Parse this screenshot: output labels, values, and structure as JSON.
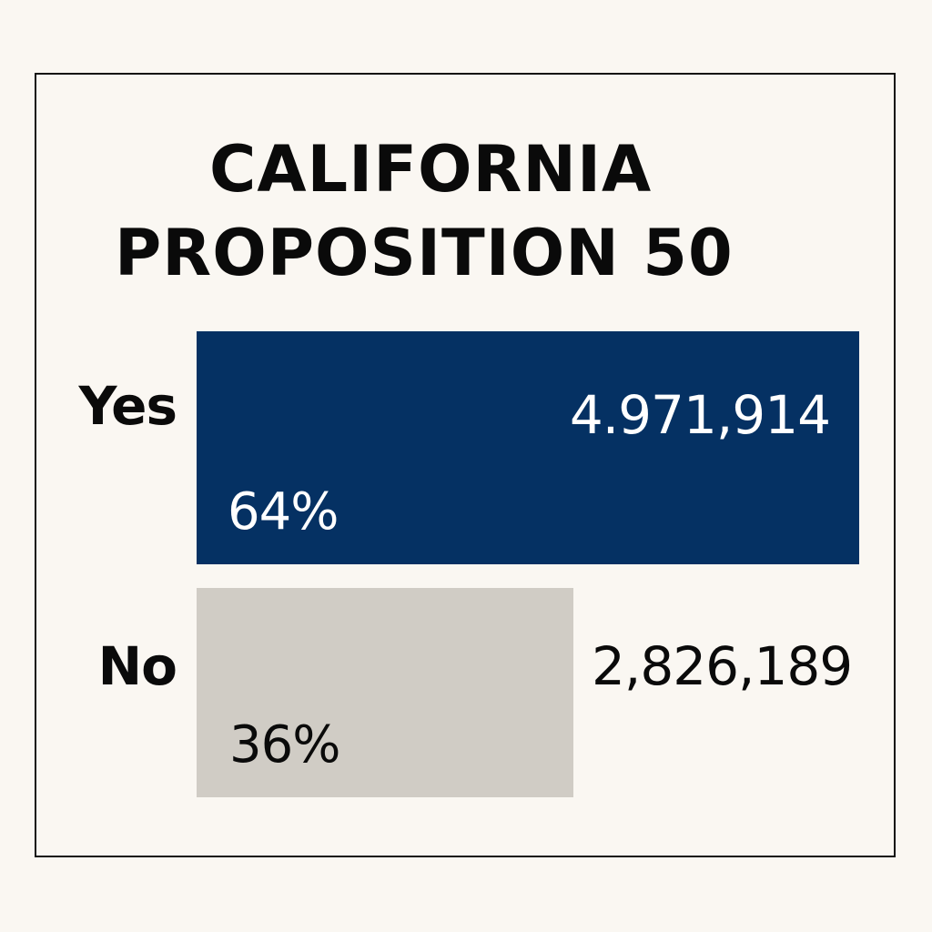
{
  "chart_data": {
    "type": "bar",
    "orientation": "horizontal",
    "title": [
      "CALIFORNIA",
      "PROPOSITION 50"
    ],
    "categories": [
      "Yes",
      "No"
    ],
    "values": [
      4971914,
      2826189
    ],
    "value_labels": [
      "4.971,914",
      "2,826,189"
    ],
    "percent_labels": [
      "64%",
      "36%"
    ],
    "percent": [
      64,
      36
    ],
    "colors": [
      "#053163",
      "#d0ccc5"
    ],
    "label_colors": [
      "#ffffff",
      "#0a0a0a"
    ]
  }
}
